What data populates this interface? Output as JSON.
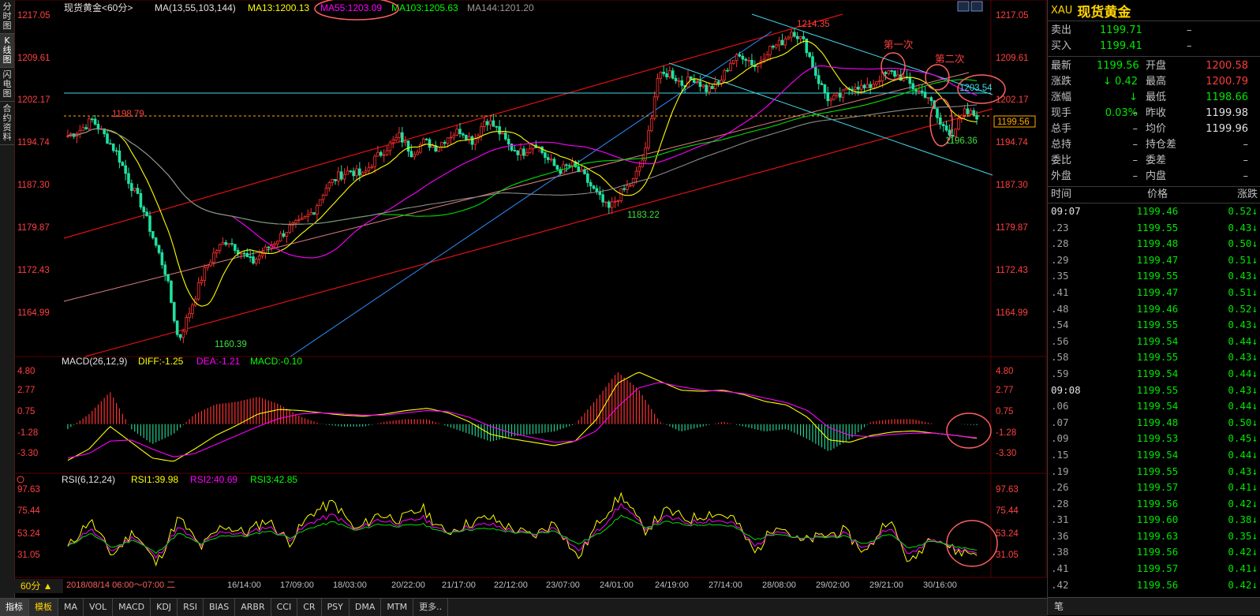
{
  "left_tabs": [
    "分时图",
    "K线图",
    "闪电图",
    "合约资料"
  ],
  "header": {
    "title": "现货黄金<60分>",
    "ma_params": "MA(13,55,103,144)",
    "ma13": "MA13:1200.13",
    "ma55": "MA55:1203.09",
    "ma103": "MA103:1205.63",
    "ma144": "MA144:1201.20"
  },
  "macd_header": {
    "label": "MACD(26,12,9)",
    "diff": "DIFF:-1.25",
    "dea": "DEA:-1.21",
    "macd": "MACD:-0.10"
  },
  "rsi_header": {
    "label": "RSI(6,12,24)",
    "rsi1": "RSI1:39.98",
    "rsi2": "RSI2:40.69",
    "rsi3": "RSI3:42.85"
  },
  "price_axis": [
    "1217.05",
    "1209.61",
    "1202.17",
    "1194.74",
    "1187.30",
    "1179.87",
    "1172.43",
    "1164.99"
  ],
  "macd_axis": [
    "4.80",
    "2.77",
    "0.75",
    "-1.28",
    "-3.30"
  ],
  "rsi_axis": [
    "97.63",
    "75.44",
    "53.24",
    "31.05"
  ],
  "current_price_tag": "1199.56",
  "annotations": {
    "high": "1214.35",
    "low": "1160.39",
    "left_high": "1198.79",
    "mid_low": "1183.22",
    "right_low": "1196.36",
    "level": "1203.54",
    "first": "第一次",
    "second": "第二次"
  },
  "x_labels": [
    "16/14:00",
    "17/09:00",
    "18/03:00",
    "20/22:00",
    "21/17:00",
    "22/12:00",
    "23/07:00",
    "24/01:00",
    "24/19:00",
    "27/14:00",
    "28/08:00",
    "29/02:00",
    "29/21:00",
    "30/16:00"
  ],
  "bottom_bar": {
    "period": "60分 ▲",
    "cursor_info": "2018/08/14 06:00～07:00 二",
    "tabs": [
      "指标",
      "模板",
      "MA",
      "VOL",
      "MACD",
      "KDJ",
      "RSI",
      "BIAS",
      "ARBR",
      "CCI",
      "CR",
      "PSY",
      "DMA",
      "MTM",
      "更多.."
    ]
  },
  "quote": {
    "symbol": "XAU",
    "name": "现货黄金",
    "rows1": [
      {
        "l": "卖出",
        "v": "1199.71",
        "r": "–"
      },
      {
        "l": "买入",
        "v": "1199.41",
        "r": "–"
      }
    ],
    "rows2": [
      {
        "l1": "最新",
        "v1": "1199.56",
        "l2": "开盘",
        "v2": "1200.58"
      },
      {
        "l1": "涨跌",
        "v1": "↓ 0.42",
        "l2": "最高",
        "v2": "1200.79"
      },
      {
        "l1": "涨幅",
        "v1": "↓ 0.03%",
        "l2": "最低",
        "v2": "1198.66"
      },
      {
        "l1": "现手",
        "v1": "–",
        "l2": "昨收",
        "v2": "1199.98"
      },
      {
        "l1": "总手",
        "v1": "–",
        "l2": "均价",
        "v2": "1199.96"
      },
      {
        "l1": "总持",
        "v1": "–",
        "l2": "持仓差",
        "v2": "–"
      },
      {
        "l1": "委比",
        "v1": "–",
        "l2": "委差",
        "v2": "–"
      },
      {
        "l1": "外盘",
        "v1": "–",
        "l2": "内盘",
        "v2": "–"
      }
    ],
    "tick_headers": [
      "时间",
      "价格",
      "涨跌"
    ],
    "ticks": [
      {
        "t": "09:07",
        "p": "1199.46",
        "c": "0.52↓"
      },
      {
        "t": ".23",
        "p": "1199.55",
        "c": "0.43↓"
      },
      {
        "t": ".28",
        "p": "1199.48",
        "c": "0.50↓"
      },
      {
        "t": ".29",
        "p": "1199.47",
        "c": "0.51↓"
      },
      {
        "t": ".35",
        "p": "1199.55",
        "c": "0.43↓"
      },
      {
        "t": ".41",
        "p": "1199.47",
        "c": "0.51↓"
      },
      {
        "t": ".48",
        "p": "1199.46",
        "c": "0.52↓"
      },
      {
        "t": ".54",
        "p": "1199.55",
        "c": "0.43↓"
      },
      {
        "t": ".56",
        "p": "1199.54",
        "c": "0.44↓"
      },
      {
        "t": ".58",
        "p": "1199.55",
        "c": "0.43↓"
      },
      {
        "t": ".59",
        "p": "1199.54",
        "c": "0.44↓"
      },
      {
        "t": "09:08",
        "p": "1199.55",
        "c": "0.43↓"
      },
      {
        "t": ".06",
        "p": "1199.54",
        "c": "0.44↓"
      },
      {
        "t": ".07",
        "p": "1199.48",
        "c": "0.50↓"
      },
      {
        "t": ".09",
        "p": "1199.53",
        "c": "0.45↓"
      },
      {
        "t": ".15",
        "p": "1199.54",
        "c": "0.44↓"
      },
      {
        "t": ".19",
        "p": "1199.55",
        "c": "0.43↓"
      },
      {
        "t": ".26",
        "p": "1199.57",
        "c": "0.41↓"
      },
      {
        "t": ".28",
        "p": "1199.56",
        "c": "0.42↓"
      },
      {
        "t": ".31",
        "p": "1199.60",
        "c": "0.38↓"
      },
      {
        "t": ".36",
        "p": "1199.63",
        "c": "0.35↓"
      },
      {
        "t": ".38",
        "p": "1199.56",
        "c": "0.42↓"
      },
      {
        "t": ".41",
        "p": "1199.57",
        "c": "0.41↓"
      },
      {
        "t": ".42",
        "p": "1199.56",
        "c": "0.42↓"
      }
    ],
    "footer": "笔"
  },
  "chart_data": {
    "type": "candlestick",
    "instrument": "现货黄金",
    "interval": "60分",
    "price_range": [
      1158,
      1219
    ],
    "ma_lines": [
      "MA13",
      "MA55",
      "MA103",
      "MA144"
    ],
    "key_points": {
      "high": 1214.35,
      "low": 1160.39,
      "left_high": 1198.79,
      "mid_low": 1183.22,
      "right_low": 1196.36,
      "level": 1203.54,
      "last": 1199.56
    },
    "close_path": [
      1196,
      1197,
      1198.8,
      1196,
      1193,
      1188,
      1184,
      1178,
      1172,
      1160.4,
      1166,
      1172,
      1176,
      1178,
      1176,
      1174,
      1176,
      1178,
      1180,
      1181,
      1183,
      1187,
      1189,
      1190,
      1189,
      1192,
      1194,
      1196,
      1193,
      1195,
      1194,
      1196,
      1197,
      1195,
      1199,
      1197,
      1194,
      1193,
      1195,
      1192,
      1190,
      1191,
      1189,
      1186,
      1183.2,
      1186,
      1188,
      1193,
      1206,
      1207,
      1205,
      1206,
      1204,
      1205,
      1209,
      1210,
      1208,
      1211,
      1212,
      1214.35,
      1212,
      1206,
      1202,
      1203,
      1205,
      1204,
      1206,
      1207,
      1206,
      1204,
      1203,
      1198,
      1196.4,
      1200,
      1199.56
    ],
    "macd_range": [
      -4.2,
      5.0
    ],
    "macd_diff": [
      -3.2,
      -2.2,
      -0.2,
      -1.6,
      -3.0,
      -3.3,
      -2.2,
      -1.0,
      -0.1,
      0.9,
      1.3,
      1.2,
      1.0,
      0.8,
      0.7,
      0.9,
      1.2,
      1.4,
      1.0,
      0.2,
      -0.9,
      -1.3,
      -1.6,
      -1.9,
      -1.5,
      0.4,
      3.6,
      4.6,
      3.8,
      3.0,
      2.9,
      3.0,
      2.6,
      2.0,
      1.7,
      0.6,
      -1.4,
      -1.6,
      -1.0,
      -0.7,
      -0.6,
      -0.8,
      -1.0,
      -1.25
    ],
    "macd_dea": [
      -3.0,
      -2.6,
      -1.5,
      -1.4,
      -2.2,
      -2.9,
      -2.6,
      -1.8,
      -1.0,
      -0.2,
      0.5,
      0.9,
      1.0,
      0.9,
      0.8,
      0.8,
      1.0,
      1.2,
      1.1,
      0.6,
      -0.2,
      -0.8,
      -1.2,
      -1.6,
      -1.5,
      -0.6,
      1.5,
      3.2,
      3.7,
      3.3,
      3.0,
      2.9,
      2.7,
      2.3,
      1.9,
      1.2,
      -0.3,
      -1.0,
      -1.1,
      -0.9,
      -0.8,
      -0.8,
      -1.0,
      -1.21
    ],
    "rsi_range": [
      20,
      100
    ],
    "rsi1": [
      45,
      70,
      38,
      60,
      30,
      72,
      45,
      65,
      58,
      70,
      50,
      76,
      85,
      60,
      75,
      70,
      80,
      58,
      66,
      72,
      62,
      55,
      68,
      35,
      70,
      92,
      60,
      78,
      70,
      76,
      72,
      40,
      68,
      50,
      55,
      60,
      40,
      72,
      30,
      58,
      42,
      40
    ],
    "rsi2": [
      45,
      62,
      42,
      55,
      36,
      63,
      47,
      60,
      56,
      64,
      53,
      68,
      74,
      60,
      70,
      66,
      72,
      58,
      63,
      66,
      60,
      56,
      63,
      42,
      62,
      84,
      62,
      72,
      67,
      70,
      67,
      46,
      62,
      52,
      54,
      57,
      44,
      64,
      38,
      55,
      44,
      41
    ],
    "rsi3": [
      46,
      58,
      45,
      52,
      40,
      58,
      48,
      56,
      55,
      60,
      54,
      63,
      68,
      60,
      66,
      64,
      66,
      58,
      61,
      62,
      59,
      57,
      60,
      48,
      58,
      74,
      63,
      68,
      65,
      66,
      64,
      52,
      58,
      53,
      54,
      55,
      48,
      58,
      44,
      52,
      46,
      43
    ]
  }
}
